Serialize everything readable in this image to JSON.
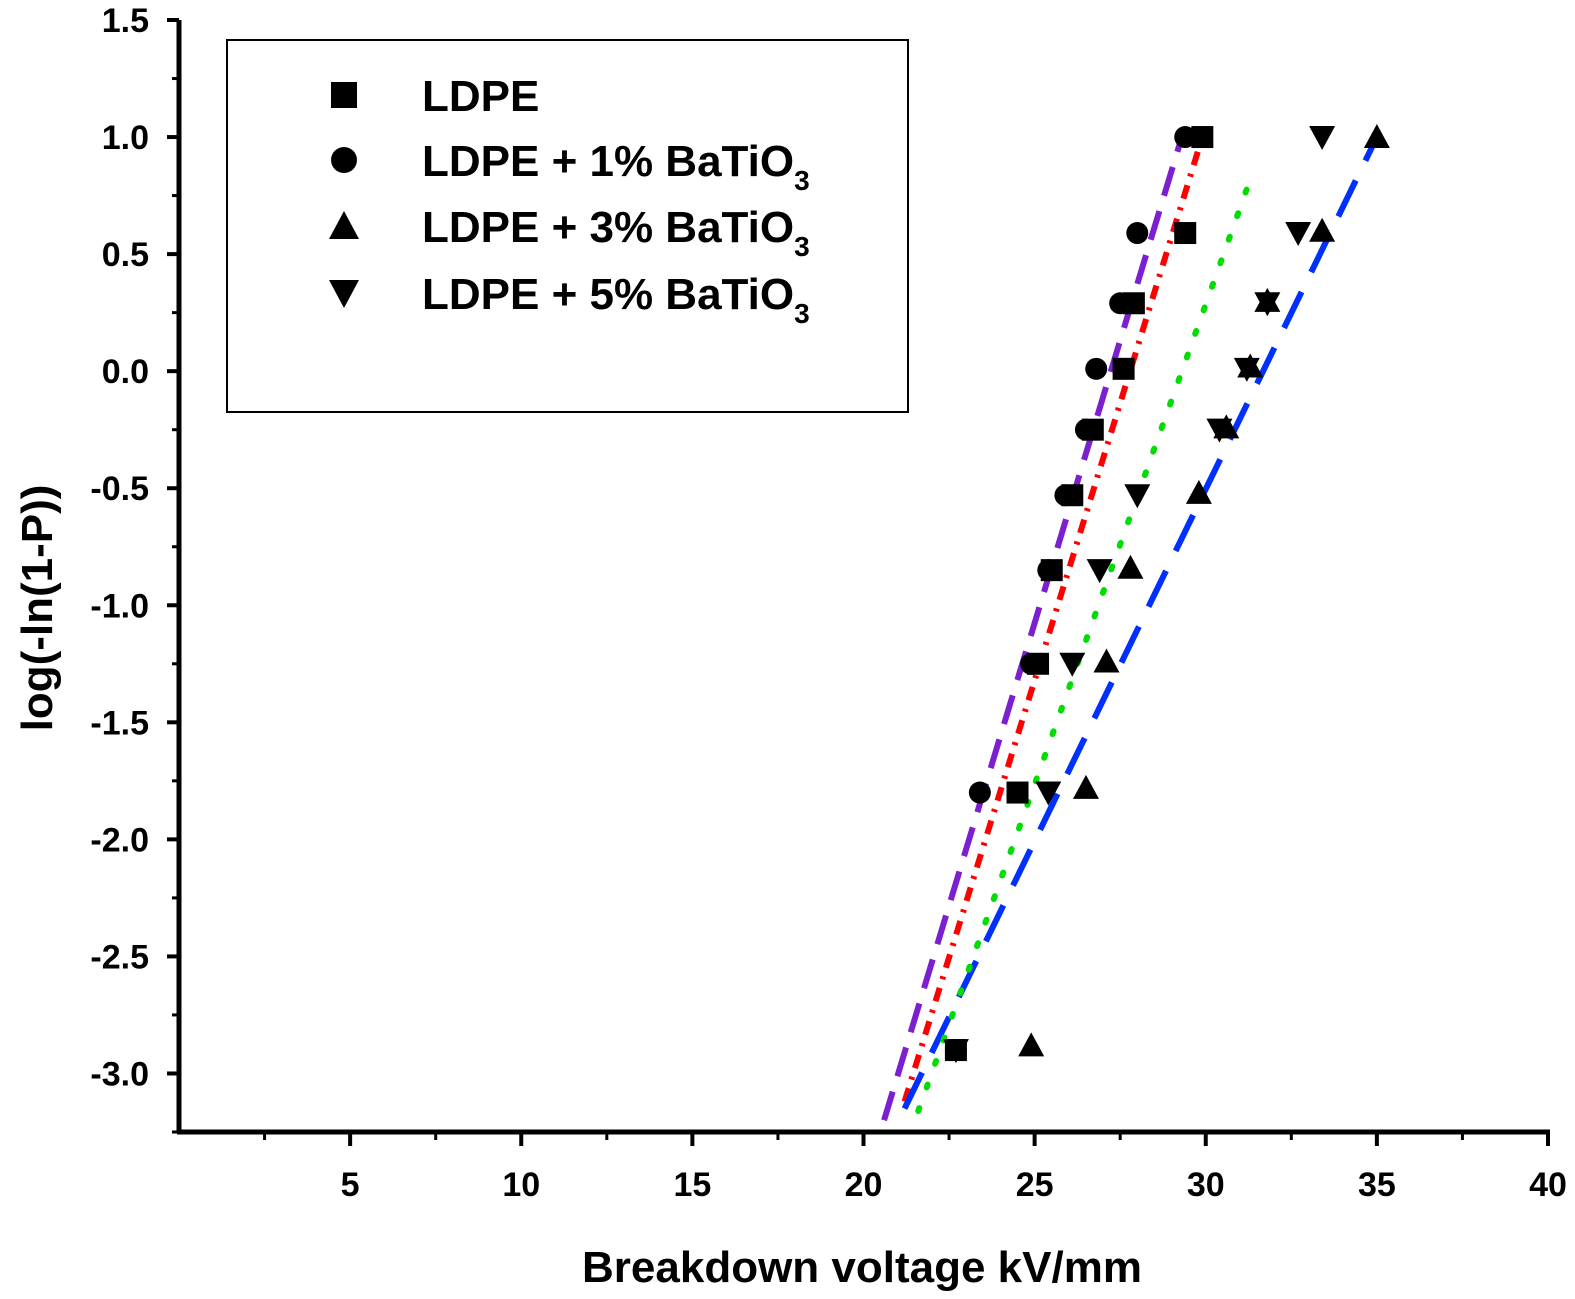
{
  "chart_data": {
    "type": "scatter",
    "xlabel": "Breakdown voltage kV/mm",
    "ylabel": "log(-ln(1-P))",
    "xlim": [
      0,
      40
    ],
    "ylim": [
      -3.25,
      1.5
    ],
    "xticks": [
      5,
      10,
      15,
      20,
      25,
      30,
      35,
      40
    ],
    "yticks": [
      1.5,
      1.0,
      0.5,
      0.0,
      -0.5,
      -1.0,
      -1.5,
      -2.0,
      -2.5,
      -3.0
    ],
    "ytick_labels": [
      "1.5",
      "1.0",
      "0.5",
      "0.0",
      "-0.5",
      "-1.0",
      "-1.5",
      "-2.0",
      "-2.5",
      "-3.0"
    ],
    "legend_position": "top-left",
    "series": [
      {
        "name": "LDPE",
        "name_base": "LDPE",
        "name_sub": "",
        "marker": "square",
        "x": [
          22.7,
          24.5,
          25.1,
          25.5,
          26.1,
          26.7,
          27.6,
          27.9,
          29.4,
          29.9
        ],
        "y": [
          -2.9,
          -1.8,
          -1.25,
          -0.85,
          -0.53,
          -0.25,
          0.01,
          0.29,
          0.59,
          1.0
        ],
        "fit": {
          "color": "#ff0000",
          "style": "dashdot",
          "x": [
            21.2,
            29.9
          ],
          "y": [
            -3.12,
            1.0
          ]
        }
      },
      {
        "name": "LDPE + 1% BaTiO3",
        "name_base": "LDPE + 1% BaTiO",
        "name_sub": "3",
        "marker": "circle",
        "x": [
          22.7,
          23.4,
          24.9,
          25.4,
          25.9,
          26.5,
          26.8,
          27.5,
          28.0,
          29.4
        ],
        "y": [
          -2.9,
          -1.8,
          -1.25,
          -0.85,
          -0.53,
          -0.25,
          0.01,
          0.29,
          0.59,
          1.0
        ],
        "fit": {
          "color": "#7b1fd0",
          "style": "dash",
          "x": [
            20.6,
            29.3
          ],
          "y": [
            -3.2,
            1.0
          ]
        }
      },
      {
        "name": "LDPE + 3% BaTiO3",
        "name_base": "LDPE + 3% BaTiO",
        "name_sub": "3",
        "marker": "triangle-up",
        "x": [
          24.9,
          26.5,
          27.1,
          27.8,
          29.8,
          30.6,
          31.3,
          31.8,
          33.4,
          35.0
        ],
        "y": [
          -2.88,
          -1.78,
          -1.24,
          -0.84,
          -0.52,
          -0.24,
          0.02,
          0.3,
          0.6,
          1.0
        ],
        "fit": {
          "color": "#0030ff",
          "style": "longdash",
          "x": [
            21.2,
            35.0
          ],
          "y": [
            -3.15,
            1.0
          ]
        }
      },
      {
        "name": "LDPE + 5% BaTiO3",
        "name_base": "LDPE + 5% BaTiO",
        "name_sub": "3",
        "marker": "triangle-down",
        "x": [
          22.7,
          25.4,
          26.1,
          26.9,
          28.0,
          30.4,
          31.2,
          31.8,
          32.7,
          33.4
        ],
        "y": [
          -2.9,
          -1.8,
          -1.25,
          -0.85,
          -0.53,
          -0.25,
          0.01,
          0.29,
          0.59,
          1.0
        ],
        "fit": {
          "color": "#00dd00",
          "style": "dot",
          "x": [
            21.6,
            31.4
          ],
          "y": [
            -3.16,
            0.86
          ]
        }
      }
    ]
  }
}
